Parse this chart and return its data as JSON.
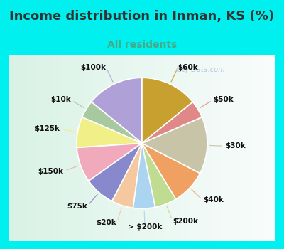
{
  "title": "Income distribution in Inman, KS (%)",
  "subtitle": "All residents",
  "watermark": "© City-Data.com",
  "labels": [
    "$100k",
    "$10k",
    "$125k",
    "$150k",
    "$75k",
    "$20k",
    "> $200k",
    "$200k",
    "$40k",
    "$30k",
    "$50k",
    "$60k"
  ],
  "values": [
    13,
    4,
    7,
    8,
    7,
    5,
    5,
    5,
    8,
    13,
    4,
    13
  ],
  "colors": [
    "#b0a0d8",
    "#a8c8a0",
    "#f0ef88",
    "#f0aabb",
    "#8888cc",
    "#f5c8a0",
    "#aad4f0",
    "#c0dc90",
    "#f0a060",
    "#c8c4a8",
    "#e08888",
    "#c8a030"
  ],
  "background_cyan": "#00f0f0",
  "background_chart": "#ddf5ee",
  "title_color": "#333333",
  "subtitle_color": "#44aa88",
  "label_color": "#111111",
  "title_fontsize": 13,
  "subtitle_fontsize": 10,
  "label_fontsize": 7.5,
  "startangle": 90,
  "figsize": [
    4.0,
    3.5
  ],
  "dpi": 100
}
